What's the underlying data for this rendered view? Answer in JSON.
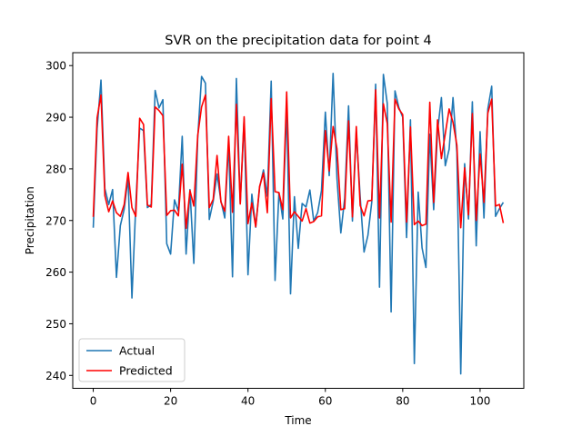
{
  "chart_data": {
    "type": "line",
    "title": "SVR on the precipitation data for point 4",
    "xlabel": "Time",
    "ylabel": "Precipitation",
    "xlim": [
      -5.3,
      111.3
    ],
    "ylim": [
      237.5,
      302.5
    ],
    "xticks": [
      0,
      20,
      40,
      60,
      80,
      100
    ],
    "yticks": [
      240,
      250,
      260,
      270,
      280,
      290,
      300
    ],
    "grid": false,
    "legend_position": "lower-left",
    "series": [
      {
        "name": "Actual",
        "color": "#1f77b4",
        "x": [
          0,
          1,
          2,
          3,
          4,
          5,
          6,
          7,
          8,
          9,
          10,
          11,
          12,
          13,
          14,
          15,
          16,
          17,
          18,
          19,
          20,
          21,
          22,
          23,
          24,
          25,
          26,
          27,
          28,
          29,
          30,
          31,
          32,
          33,
          34,
          35,
          36,
          37,
          38,
          39,
          40,
          41,
          42,
          43,
          44,
          45,
          46,
          47,
          48,
          49,
          50,
          51,
          52,
          53,
          54,
          55,
          56,
          57,
          58,
          59,
          60,
          61,
          62,
          63,
          64,
          65,
          66,
          67,
          68,
          69,
          70,
          71,
          72,
          73,
          74,
          75,
          76,
          77,
          78,
          79,
          80,
          81,
          82,
          83,
          84,
          85,
          86,
          87,
          88,
          89,
          90,
          91,
          92,
          93,
          94,
          95,
          96,
          97,
          98,
          99,
          100,
          101,
          102,
          103,
          104,
          105,
          106
        ],
        "values": [
          268.6,
          287.8,
          297.2,
          276.2,
          273.1,
          276.0,
          259.0,
          269.0,
          272.2,
          278.4,
          255.0,
          273.0,
          287.9,
          287.4,
          272.5,
          273.1,
          295.2,
          291.8,
          293.4,
          265.5,
          263.5,
          274.0,
          271.8,
          286.3,
          263.5,
          276.0,
          261.7,
          285.9,
          297.9,
          296.6,
          270.2,
          273.7,
          279.0,
          273.8,
          270.5,
          285.2,
          259.1,
          297.5,
          273.3,
          289.7,
          259.5,
          275.1,
          268.7,
          276.4,
          279.8,
          274.7,
          297.0,
          258.4,
          275.4,
          270.3,
          291.9,
          255.8,
          274.6,
          264.6,
          273.3,
          272.6,
          275.9,
          269.9,
          271.5,
          275.8,
          291.0,
          278.7,
          298.5,
          278.2,
          267.6,
          274.3,
          292.2,
          269.9,
          287.2,
          274.6,
          263.9,
          267.1,
          273.6,
          296.4,
          257.1,
          298.3,
          292.7,
          252.3,
          295.1,
          291.9,
          290.0,
          266.7,
          289.5,
          242.3,
          275.5,
          264.7,
          260.9,
          286.7,
          272.1,
          287.3,
          293.8,
          280.6,
          283.8,
          293.8,
          283.2,
          240.3,
          281.0,
          270.3,
          293.0,
          265.1,
          287.2,
          270.5,
          291.6,
          296.0,
          270.8,
          272.3,
          273.5
        ]
      },
      {
        "name": "Predicted",
        "color": "#ff0000",
        "x": [
          0,
          1,
          2,
          3,
          4,
          5,
          6,
          7,
          8,
          9,
          10,
          11,
          12,
          13,
          14,
          15,
          16,
          17,
          18,
          19,
          20,
          21,
          22,
          23,
          24,
          25,
          26,
          27,
          28,
          29,
          30,
          31,
          32,
          33,
          34,
          35,
          36,
          37,
          38,
          39,
          40,
          41,
          42,
          43,
          44,
          45,
          46,
          47,
          48,
          49,
          50,
          51,
          52,
          53,
          54,
          55,
          56,
          57,
          58,
          59,
          60,
          61,
          62,
          63,
          64,
          65,
          66,
          67,
          68,
          69,
          70,
          71,
          72,
          73,
          74,
          75,
          76,
          77,
          78,
          79,
          80,
          81,
          82,
          83,
          84,
          85,
          86,
          87,
          88,
          89,
          90,
          91,
          92,
          93,
          94,
          95,
          96,
          97,
          98,
          99,
          100,
          101,
          102,
          103,
          104,
          105,
          106
        ],
        "values": [
          270.7,
          289.9,
          294.3,
          274.8,
          271.7,
          273.8,
          271.5,
          270.8,
          273.1,
          279.3,
          272.5,
          270.8,
          289.8,
          288.6,
          273.0,
          272.6,
          292.0,
          291.3,
          290.3,
          271.0,
          271.9,
          272.0,
          270.9,
          280.9,
          268.5,
          275.8,
          272.8,
          286.4,
          292.0,
          294.3,
          272.5,
          274.1,
          282.6,
          273.6,
          271.8,
          286.3,
          271.6,
          292.5,
          273.2,
          290.1,
          269.4,
          273.4,
          268.8,
          276.6,
          279.2,
          271.5,
          293.6,
          275.6,
          275.4,
          272.1,
          294.9,
          270.5,
          271.7,
          270.8,
          269.9,
          272.3,
          269.5,
          269.8,
          270.7,
          270.9,
          287.4,
          279.6,
          288.2,
          283.9,
          272.1,
          272.3,
          289.3,
          270.7,
          288.2,
          272.9,
          270.9,
          273.8,
          273.9,
          295.3,
          270.5,
          292.6,
          288.8,
          269.7,
          293.5,
          291.6,
          290.5,
          269.7,
          288.1,
          269.2,
          269.9,
          269.0,
          269.3,
          292.9,
          273.5,
          289.5,
          282.0,
          286.8,
          291.6,
          289.0,
          284.6,
          268.6,
          280.2,
          271.1,
          290.7,
          270.0,
          282.9,
          273.5,
          290.8,
          293.5,
          272.8,
          273.1,
          269.5
        ]
      }
    ]
  }
}
